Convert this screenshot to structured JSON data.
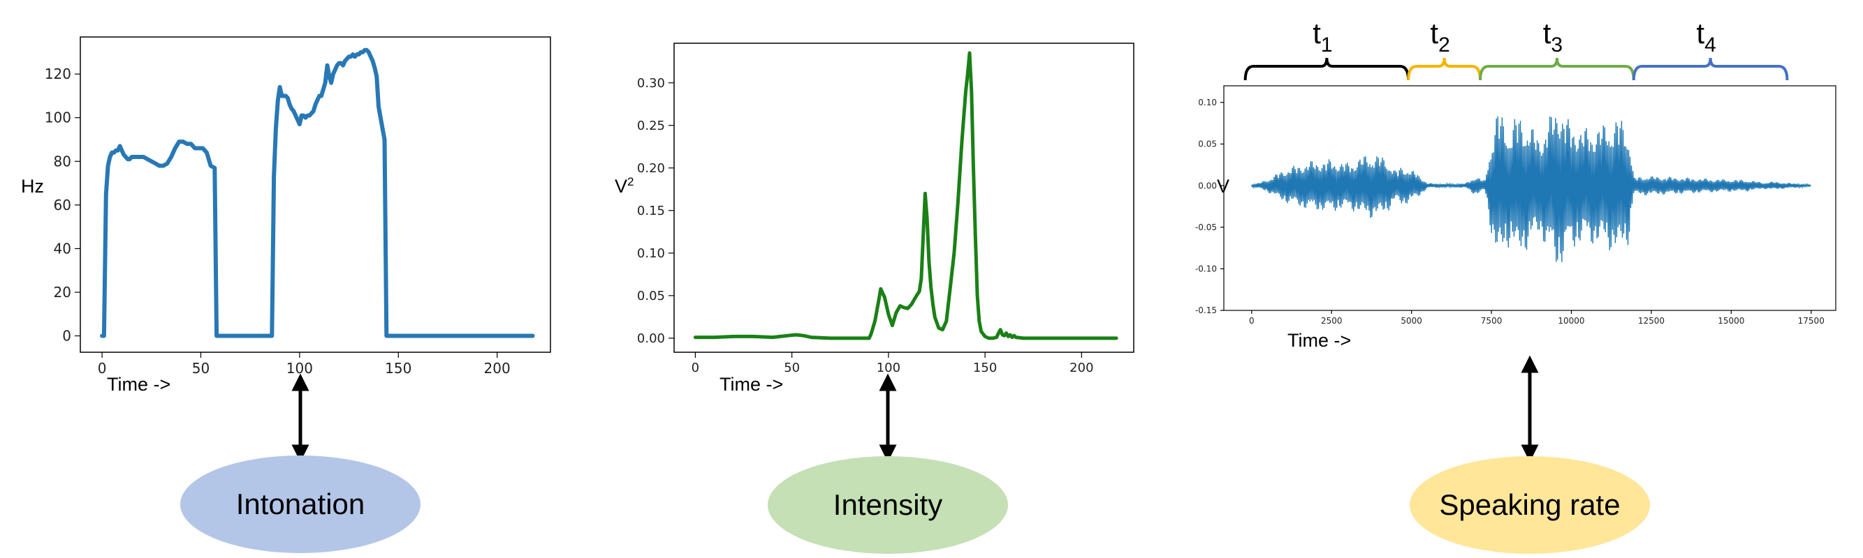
{
  "chart_data": [
    {
      "type": "line",
      "xlabel": "Time ->",
      "ylabel": "Hz",
      "xlim": [
        -11,
        227
      ],
      "ylim": [
        -7.5,
        137
      ],
      "xticks": [
        0,
        50,
        100,
        150,
        200
      ],
      "yticks": [
        0,
        20,
        40,
        60,
        80,
        100,
        120
      ],
      "color": "#2878b5",
      "series": [
        {
          "x": [
            0,
            1,
            2,
            3,
            4,
            5,
            6,
            7,
            8,
            9,
            10,
            11,
            12,
            13,
            14,
            15,
            17,
            19,
            21,
            23,
            25,
            27,
            29,
            31,
            33,
            35,
            37,
            39,
            41,
            43,
            45,
            47,
            49,
            51,
            53,
            55,
            57,
            58,
            59,
            60,
            61,
            86,
            87,
            88,
            89,
            90,
            91,
            92,
            93,
            94,
            95,
            96,
            97,
            98,
            99,
            100,
            101,
            102,
            103,
            104,
            105,
            106,
            107,
            108,
            109,
            110,
            111,
            112,
            113,
            114,
            115,
            116,
            117,
            118,
            119,
            120,
            121,
            122,
            123,
            124,
            125,
            126,
            127,
            128,
            129,
            130,
            131,
            132,
            133,
            134,
            135,
            136,
            137,
            138,
            139,
            140,
            141,
            142,
            143,
            144,
            145,
            146,
            147,
            148,
            180,
            200,
            218
          ],
          "y": [
            0,
            0,
            65,
            78,
            82,
            84,
            84,
            85,
            85,
            87,
            85,
            83,
            82,
            81,
            81,
            82,
            82,
            82,
            82,
            81,
            80,
            79,
            78,
            78,
            79,
            82,
            86,
            89,
            89,
            88,
            88,
            86,
            86,
            86,
            84,
            78,
            77,
            0,
            0,
            0,
            0,
            0,
            73,
            95,
            108,
            114,
            110,
            110,
            110,
            109,
            106,
            104,
            103,
            101,
            99,
            97,
            101,
            101,
            100,
            101,
            101,
            102,
            103,
            106,
            108,
            110,
            110,
            113,
            116,
            124,
            119,
            116,
            120,
            122,
            124,
            125,
            125,
            124,
            126,
            127,
            128,
            128,
            129,
            128,
            129,
            129,
            130,
            130,
            131,
            131,
            130,
            128,
            126,
            123,
            119,
            105,
            100,
            95,
            90,
            0,
            0,
            0,
            0,
            0,
            0,
            0,
            0
          ]
        }
      ]
    },
    {
      "type": "line",
      "xlabel": "Time ->",
      "ylabel": "V²",
      "xlim": [
        -11,
        227
      ],
      "ylim": [
        -0.0165,
        0.3465
      ],
      "xticks": [
        0,
        50,
        100,
        150,
        200
      ],
      "yticks": [
        0.0,
        0.05,
        0.1,
        0.15,
        0.2,
        0.25,
        0.3
      ],
      "ytick_labels": [
        "0.00",
        "0.05",
        "0.10",
        "0.15",
        "0.20",
        "0.25",
        "0.30"
      ],
      "color": "#1a8016",
      "series": [
        {
          "x": [
            0,
            10,
            20,
            30,
            40,
            44,
            48,
            52,
            56,
            60,
            70,
            80,
            90,
            91,
            93,
            95,
            96,
            98,
            100,
            102,
            104,
            106,
            108,
            110,
            112,
            114,
            116,
            117,
            118,
            119,
            120,
            121,
            122,
            123,
            124,
            126,
            128,
            130,
            132,
            134,
            136,
            138,
            139,
            140,
            141,
            142,
            143,
            144,
            145,
            146,
            147,
            148,
            150,
            152,
            154,
            156,
            157,
            158,
            159,
            160,
            161,
            162,
            163,
            164,
            165,
            166,
            170,
            180,
            200,
            218
          ],
          "y": [
            0.001,
            0.001,
            0.002,
            0.002,
            0.001,
            0.002,
            0.003,
            0.004,
            0.003,
            0.001,
            0.0,
            0.0,
            0.0,
            0.005,
            0.02,
            0.045,
            0.058,
            0.048,
            0.028,
            0.015,
            0.03,
            0.038,
            0.036,
            0.035,
            0.04,
            0.048,
            0.055,
            0.07,
            0.12,
            0.17,
            0.14,
            0.09,
            0.06,
            0.04,
            0.025,
            0.012,
            0.01,
            0.02,
            0.06,
            0.1,
            0.16,
            0.23,
            0.26,
            0.29,
            0.31,
            0.335,
            0.29,
            0.2,
            0.12,
            0.05,
            0.02,
            0.008,
            0.002,
            0.0,
            0.0,
            0.001,
            0.006,
            0.01,
            0.004,
            0.003,
            0.006,
            0.002,
            0.004,
            0.001,
            0.003,
            0.001,
            0.0,
            0.0,
            0.0,
            0.0
          ]
        }
      ]
    },
    {
      "type": "line",
      "xlabel": "Time ->",
      "ylabel": "V",
      "xlim": [
        -870,
        18270
      ],
      "ylim": [
        -0.15,
        0.12
      ],
      "xticks": [
        0,
        2500,
        5000,
        7500,
        10000,
        12500,
        15000,
        17500
      ],
      "yticks": [
        -0.15,
        -0.1,
        -0.05,
        0.0,
        0.05,
        0.1
      ],
      "ytick_labels": [
        "-0.15",
        "-0.10",
        "-0.05",
        "0.00",
        "0.05",
        "0.10"
      ],
      "color": "#1f77b4",
      "envelope": [
        {
          "x": 0,
          "a": 0.002
        },
        {
          "x": 200,
          "a": 0.003
        },
        {
          "x": 600,
          "a": 0.01
        },
        {
          "x": 1000,
          "a": 0.02
        },
        {
          "x": 1800,
          "a": 0.03
        },
        {
          "x": 2500,
          "a": 0.032
        },
        {
          "x": 3000,
          "a": 0.028
        },
        {
          "x": 3700,
          "a": 0.04
        },
        {
          "x": 4200,
          "a": 0.035
        },
        {
          "x": 4500,
          "a": 0.018
        },
        {
          "x": 4700,
          "a": 0.025
        },
        {
          "x": 5200,
          "a": 0.015
        },
        {
          "x": 5500,
          "a": 0.003
        },
        {
          "x": 6300,
          "a": 0.002
        },
        {
          "x": 6700,
          "a": 0.003
        },
        {
          "x": 7000,
          "a": 0.012
        },
        {
          "x": 7300,
          "a": 0.006
        },
        {
          "x": 7500,
          "a": 0.06
        },
        {
          "x": 7700,
          "a": 0.095
        },
        {
          "x": 8100,
          "a": 0.07
        },
        {
          "x": 8300,
          "a": 0.09
        },
        {
          "x": 8700,
          "a": 0.075
        },
        {
          "x": 9000,
          "a": 0.06
        },
        {
          "x": 9400,
          "a": 0.09
        },
        {
          "x": 9600,
          "a": 0.105
        },
        {
          "x": 9900,
          "a": 0.08
        },
        {
          "x": 10400,
          "a": 0.07
        },
        {
          "x": 11000,
          "a": 0.075
        },
        {
          "x": 11500,
          "a": 0.085
        },
        {
          "x": 11800,
          "a": 0.07
        },
        {
          "x": 11950,
          "a": 0.01
        },
        {
          "x": 12300,
          "a": 0.012
        },
        {
          "x": 13500,
          "a": 0.01
        },
        {
          "x": 14500,
          "a": 0.008
        },
        {
          "x": 15500,
          "a": 0.007
        },
        {
          "x": 16000,
          "a": 0.004
        },
        {
          "x": 16300,
          "a": 0.005
        },
        {
          "x": 17500,
          "a": 0.001
        }
      ],
      "segment_brackets": [
        {
          "label": "t",
          "sub": "1",
          "x_start": -200,
          "x_end": 4900,
          "color": "#000000"
        },
        {
          "label": "t",
          "sub": "2",
          "x_start": 4900,
          "x_end": 7150,
          "color": "#f5b400"
        },
        {
          "label": "t",
          "sub": "3",
          "x_start": 7150,
          "x_end": 11950,
          "color": "#6fac46"
        },
        {
          "label": "t",
          "sub": "4",
          "x_start": 11950,
          "x_end": 16750,
          "color": "#4472c4"
        }
      ]
    }
  ],
  "features": [
    {
      "label": "Intonation",
      "color": "#b4c6e7"
    },
    {
      "label": "Intensity",
      "color": "#c5e0b4"
    },
    {
      "label": "Speaking rate",
      "color": "#ffe699"
    }
  ]
}
